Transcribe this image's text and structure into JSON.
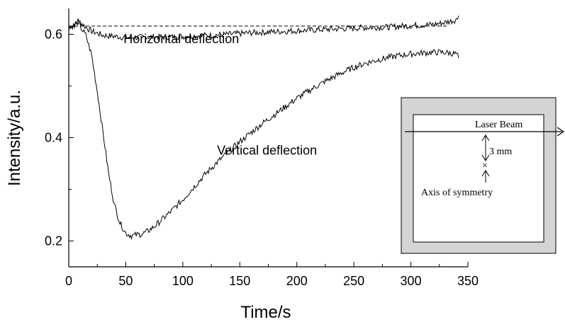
{
  "chart_data": {
    "type": "line",
    "title": "",
    "xlabel": "Time/s",
    "ylabel": "Intensity/a.u.",
    "xlim": [
      0,
      350
    ],
    "ylim": [
      0.15,
      0.65
    ],
    "x_ticks": [
      0,
      50,
      100,
      150,
      200,
      250,
      300,
      350
    ],
    "x_tick_labels": [
      "0",
      "50",
      "100",
      "150",
      "200",
      "250",
      "300",
      "350"
    ],
    "y_ticks": [
      0.2,
      0.4,
      0.6
    ],
    "y_tick_labels": [
      "0.2",
      "0.4",
      "0.6"
    ],
    "grid": false,
    "reference_line": {
      "y": 0.616,
      "style": "dashed"
    },
    "series": [
      {
        "x": [
          0,
          5,
          10,
          15,
          20,
          30,
          40,
          50,
          60,
          70,
          80,
          90,
          100,
          120,
          140,
          160,
          180,
          200,
          220,
          240,
          260,
          280,
          300,
          320,
          330,
          340,
          342
        ],
        "y": [
          0.615,
          0.618,
          0.624,
          0.614,
          0.606,
          0.598,
          0.596,
          0.594,
          0.594,
          0.595,
          0.595,
          0.595,
          0.596,
          0.598,
          0.6,
          0.603,
          0.605,
          0.607,
          0.609,
          0.611,
          0.613,
          0.614,
          0.617,
          0.619,
          0.623,
          0.628,
          0.636
        ]
      },
      {
        "x": [
          0,
          5,
          8,
          10,
          15,
          20,
          25,
          30,
          35,
          40,
          45,
          50,
          55,
          60,
          65,
          70,
          75,
          80,
          90,
          100,
          110,
          120,
          130,
          140,
          150,
          160,
          170,
          180,
          190,
          200,
          210,
          220,
          230,
          240,
          250,
          260,
          270,
          280,
          290,
          300,
          310,
          320,
          330,
          340,
          342
        ],
        "y": [
          0.613,
          0.618,
          0.625,
          0.615,
          0.598,
          0.56,
          0.49,
          0.41,
          0.33,
          0.27,
          0.235,
          0.215,
          0.21,
          0.212,
          0.214,
          0.22,
          0.228,
          0.238,
          0.258,
          0.28,
          0.305,
          0.33,
          0.352,
          0.372,
          0.392,
          0.41,
          0.428,
          0.444,
          0.46,
          0.476,
          0.49,
          0.503,
          0.515,
          0.526,
          0.536,
          0.544,
          0.55,
          0.555,
          0.559,
          0.562,
          0.564,
          0.565,
          0.565,
          0.562,
          0.554
        ]
      }
    ],
    "annotations": [
      {
        "text": "Horizontal deflection",
        "x": 48,
        "y": 0.583
      },
      {
        "text": "Vertical deflection",
        "x": 130,
        "y": 0.367
      }
    ],
    "inset": {
      "labels": {
        "beam": "Laser Beam",
        "distance": "3 mm",
        "axis": "Axis of symmetry"
      },
      "frame_color": "#d4d4d4",
      "marker": "×"
    }
  }
}
